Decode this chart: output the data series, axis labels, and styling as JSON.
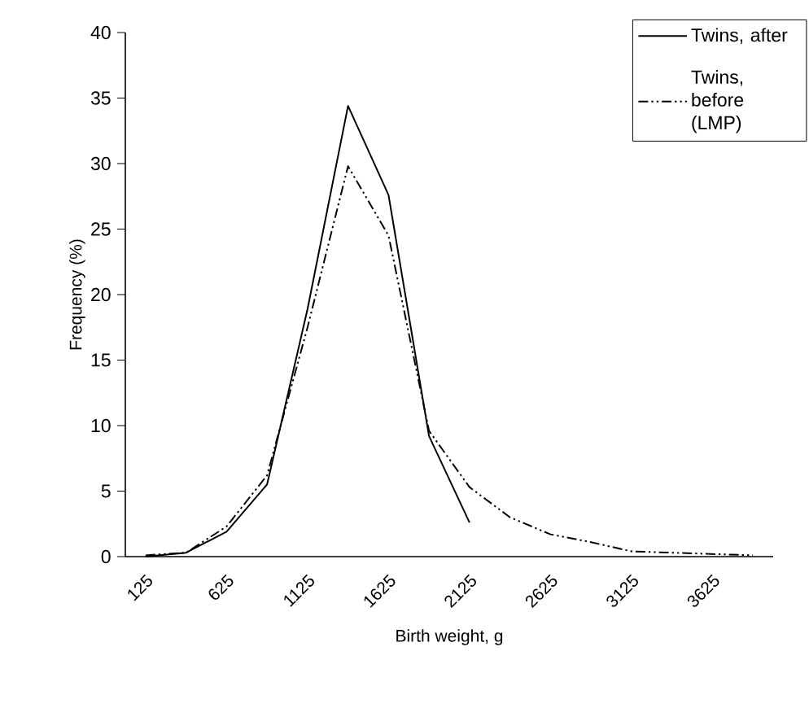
{
  "chart_data": {
    "type": "line",
    "xlabel": "Birth weight, g",
    "ylabel": "Frequency (%)",
    "categories": [
      "125",
      null,
      "625",
      null,
      "1125",
      null,
      "1625",
      null,
      "2125",
      null,
      "2625",
      null,
      "3125",
      null,
      "3625",
      null
    ],
    "series": [
      {
        "name": "Twins, after",
        "color": "#000000",
        "line_style": "solid",
        "values": [
          0,
          0.3,
          1.9,
          5.5,
          18.9,
          34.4,
          27.6,
          9.2,
          2.6,
          null,
          null,
          null,
          null,
          null,
          null,
          null
        ]
      },
      {
        "name": "Twins, before (LMP)",
        "color": "#000000",
        "line_style": "dashed",
        "values": [
          0.1,
          0.3,
          2.3,
          6.2,
          17.5,
          29.8,
          24.5,
          9.6,
          5.3,
          3.0,
          1.7,
          1.1,
          0.4,
          0.3,
          0.2,
          0.1
        ]
      }
    ],
    "ylim": [
      0,
      40
    ],
    "yticks": [
      0,
      5,
      10,
      15,
      20,
      25,
      30,
      35,
      40
    ],
    "legend": "top right"
  }
}
